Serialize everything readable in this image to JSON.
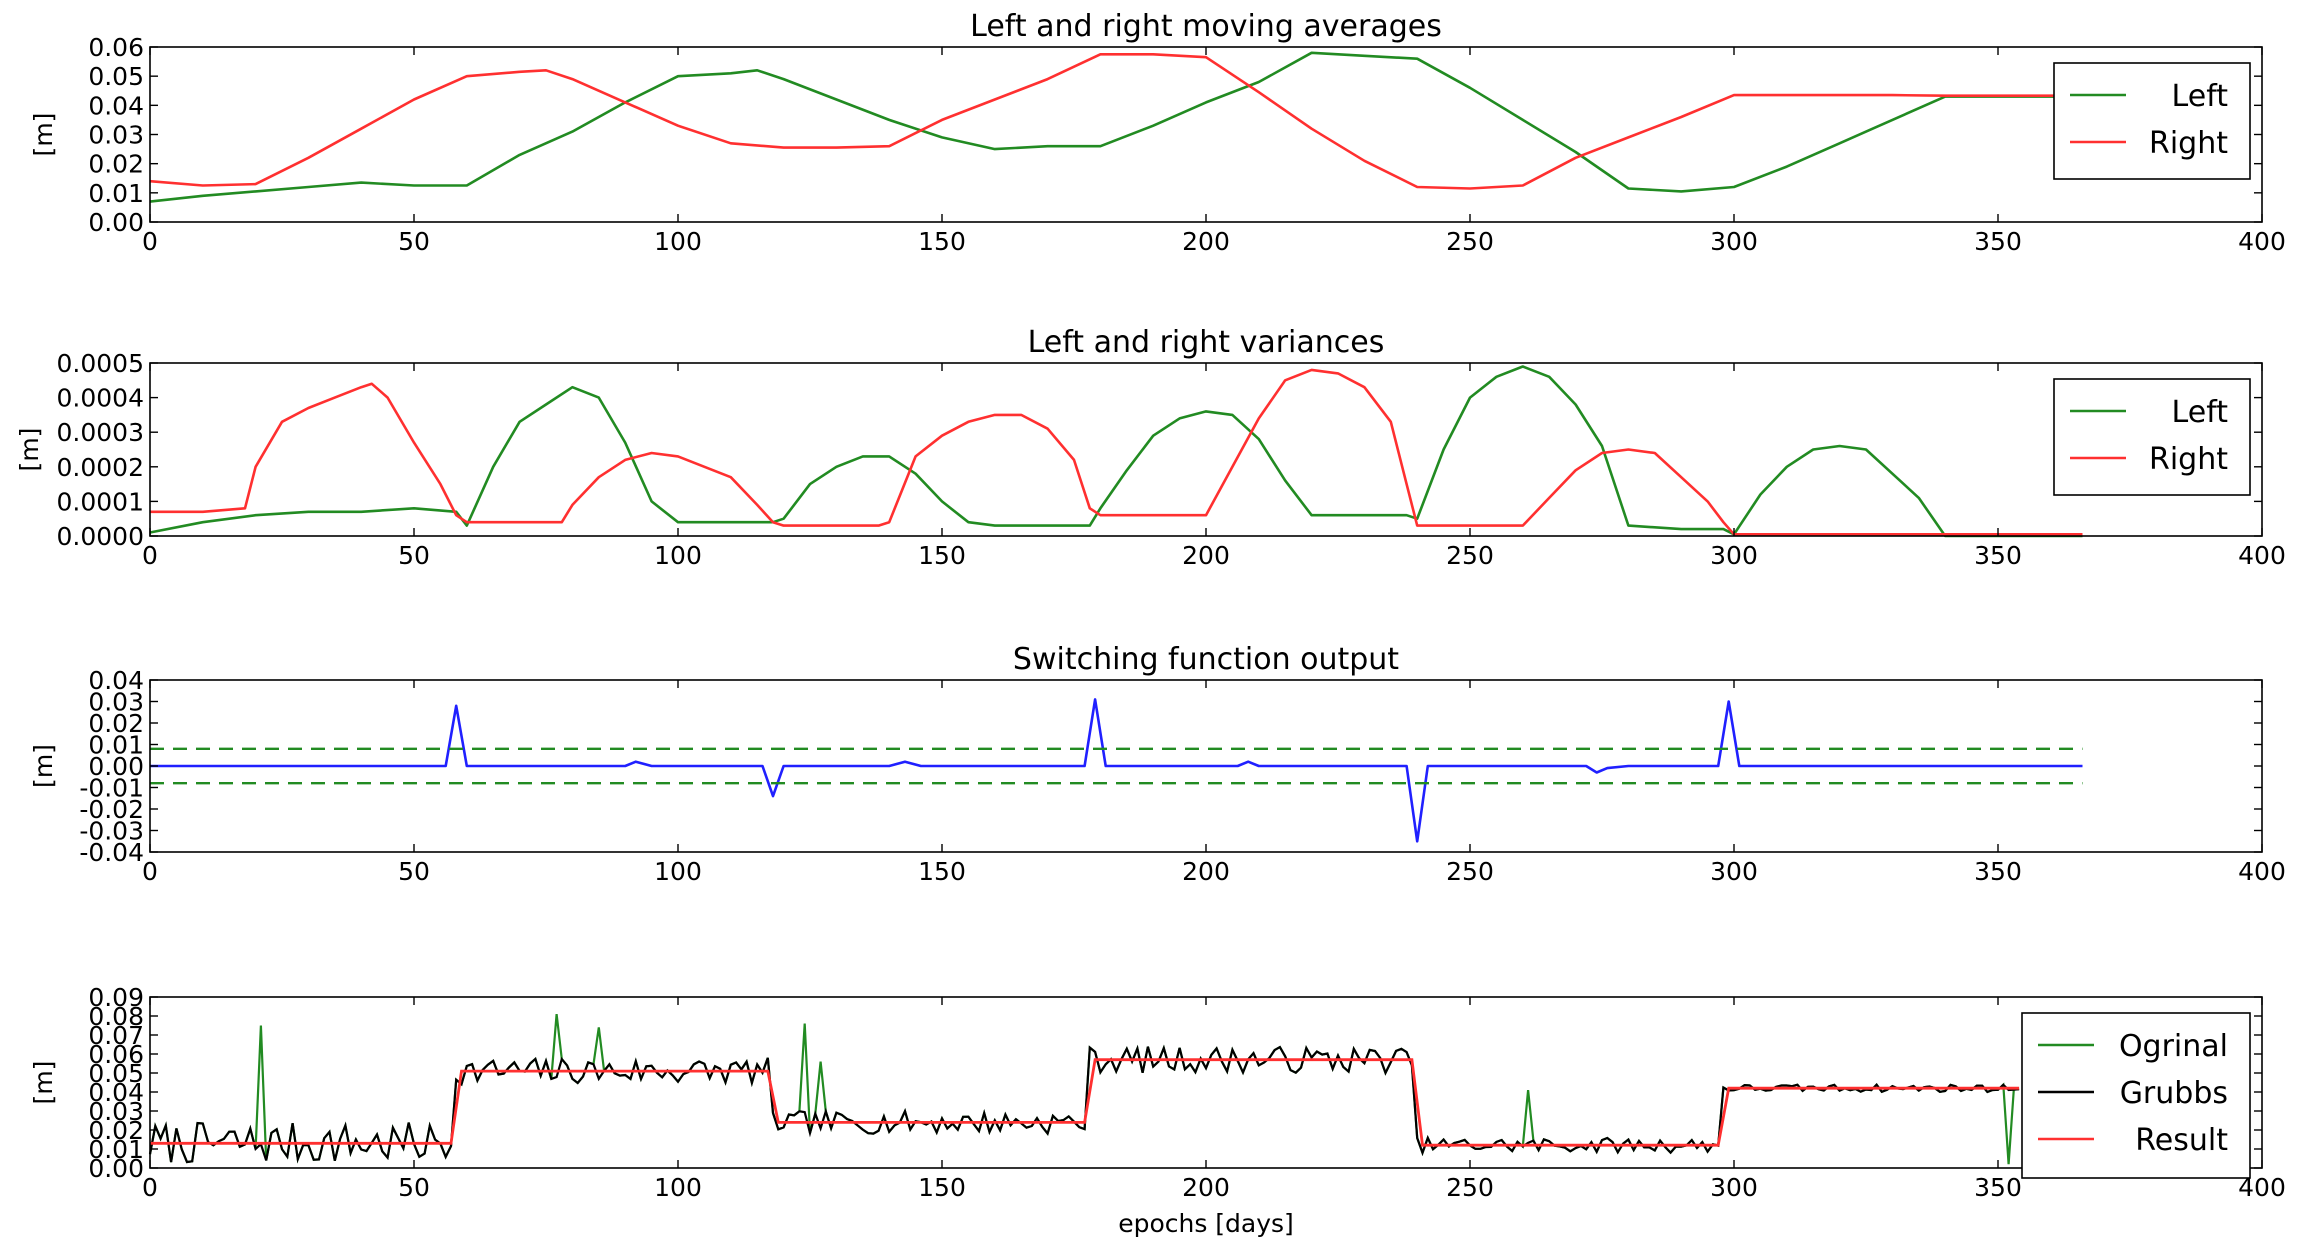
{
  "figure": {
    "xlabel": "epochs [days]"
  },
  "colors": {
    "green": "#228b22",
    "red": "#ff3030",
    "blue": "#2020ff",
    "black": "#000000"
  },
  "chart_data": [
    {
      "type": "line",
      "title": "Left and right moving averages",
      "xlabel": "",
      "ylabel": "[m]",
      "xlim": [
        0,
        400
      ],
      "ylim": [
        0,
        0.06
      ],
      "xticks": [
        "0",
        "50",
        "100",
        "150",
        "200",
        "250",
        "300",
        "350",
        "400"
      ],
      "yticks": [
        "0.00",
        "0.01",
        "0.02",
        "0.03",
        "0.04",
        "0.05",
        "0.06"
      ],
      "legend": {
        "position": "top-right",
        "entries": [
          "Left",
          "Right"
        ]
      },
      "series": [
        {
          "name": "Left",
          "color": "green",
          "x": [
            0,
            10,
            20,
            30,
            40,
            50,
            60,
            70,
            80,
            90,
            100,
            110,
            115,
            120,
            130,
            140,
            150,
            160,
            170,
            180,
            190,
            200,
            210,
            220,
            230,
            240,
            250,
            260,
            270,
            280,
            290,
            300,
            310,
            320,
            330,
            340,
            350,
            360,
            366
          ],
          "y": [
            0.007,
            0.009,
            0.0105,
            0.012,
            0.0135,
            0.0125,
            0.0125,
            0.023,
            0.031,
            0.041,
            0.05,
            0.051,
            0.052,
            0.049,
            0.042,
            0.035,
            0.029,
            0.025,
            0.026,
            0.026,
            0.033,
            0.041,
            0.048,
            0.058,
            0.057,
            0.056,
            0.046,
            0.035,
            0.024,
            0.0115,
            0.0105,
            0.012,
            0.019,
            0.027,
            0.035,
            0.043,
            0.043,
            0.043,
            0.043
          ]
        },
        {
          "name": "Right",
          "color": "red",
          "x": [
            0,
            10,
            20,
            30,
            40,
            50,
            60,
            70,
            75,
            80,
            90,
            100,
            110,
            120,
            130,
            140,
            150,
            160,
            170,
            180,
            190,
            200,
            210,
            220,
            230,
            240,
            250,
            260,
            270,
            280,
            290,
            300,
            310,
            320,
            330,
            340,
            350,
            360,
            366
          ],
          "y": [
            0.014,
            0.0125,
            0.013,
            0.022,
            0.032,
            0.042,
            0.05,
            0.0515,
            0.052,
            0.049,
            0.041,
            0.033,
            0.027,
            0.0255,
            0.0255,
            0.026,
            0.035,
            0.042,
            0.049,
            0.0575,
            0.0575,
            0.0565,
            0.0445,
            0.032,
            0.021,
            0.012,
            0.0115,
            0.0125,
            0.022,
            0.029,
            0.036,
            0.0435,
            0.0435,
            0.0435,
            0.0435,
            0.0433,
            0.0433,
            0.0433,
            0.0433
          ]
        }
      ]
    },
    {
      "type": "line",
      "title": "Left and right variances",
      "xlabel": "",
      "ylabel": "[m]",
      "xlim": [
        0,
        400
      ],
      "ylim": [
        0,
        0.0005
      ],
      "xticks": [
        "0",
        "50",
        "100",
        "150",
        "200",
        "250",
        "300",
        "350",
        "400"
      ],
      "yticks": [
        "0.0000",
        "0.0001",
        "0.0002",
        "0.0003",
        "0.0004",
        "0.0005"
      ],
      "legend": {
        "position": "top-right",
        "entries": [
          "Left",
          "Right"
        ]
      },
      "series": [
        {
          "name": "Left",
          "color": "green",
          "x": [
            0,
            10,
            20,
            30,
            40,
            50,
            58,
            60,
            65,
            70,
            75,
            80,
            85,
            90,
            95,
            100,
            110,
            118,
            120,
            125,
            130,
            135,
            140,
            145,
            150,
            155,
            160,
            170,
            178,
            180,
            185,
            190,
            195,
            200,
            205,
            210,
            215,
            220,
            230,
            238,
            240,
            245,
            250,
            255,
            260,
            265,
            270,
            275,
            280,
            290,
            298,
            300,
            305,
            310,
            315,
            320,
            325,
            330,
            335,
            340,
            350,
            360,
            366
          ],
          "y": [
            1e-05,
            4e-05,
            6e-05,
            7e-05,
            7e-05,
            8e-05,
            7e-05,
            3e-05,
            0.0002,
            0.00033,
            0.00038,
            0.00043,
            0.0004,
            0.00027,
            0.0001,
            4e-05,
            4e-05,
            4e-05,
            5e-05,
            0.00015,
            0.0002,
            0.00023,
            0.00023,
            0.00018,
            0.0001,
            4e-05,
            3e-05,
            3e-05,
            3e-05,
            8e-05,
            0.00019,
            0.00029,
            0.00034,
            0.00036,
            0.00035,
            0.00028,
            0.00016,
            6e-05,
            6e-05,
            6e-05,
            5e-05,
            0.00025,
            0.0004,
            0.00046,
            0.00049,
            0.00046,
            0.00038,
            0.00026,
            3e-05,
            2e-05,
            2e-05,
            5e-06,
            0.00012,
            0.0002,
            0.00025,
            0.00026,
            0.00025,
            0.00018,
            0.00011,
            0.0,
            0.0,
            0.0,
            0.0
          ]
        },
        {
          "name": "Right",
          "color": "red",
          "x": [
            0,
            10,
            18,
            20,
            25,
            30,
            35,
            40,
            42,
            45,
            50,
            55,
            58,
            60,
            70,
            78,
            80,
            85,
            90,
            95,
            100,
            105,
            110,
            115,
            118,
            120,
            130,
            138,
            140,
            145,
            150,
            155,
            160,
            165,
            170,
            175,
            178,
            180,
            190,
            198,
            200,
            205,
            210,
            215,
            220,
            225,
            230,
            235,
            238,
            240,
            250,
            258,
            260,
            265,
            270,
            275,
            280,
            285,
            290,
            295,
            298,
            300,
            310,
            320,
            330,
            340,
            350,
            360,
            366
          ],
          "y": [
            7e-05,
            7e-05,
            8e-05,
            0.0002,
            0.00033,
            0.00037,
            0.0004,
            0.00043,
            0.00044,
            0.0004,
            0.00027,
            0.00015,
            6e-05,
            4e-05,
            4e-05,
            4e-05,
            9e-05,
            0.00017,
            0.00022,
            0.00024,
            0.00023,
            0.0002,
            0.00017,
            9e-05,
            4e-05,
            3e-05,
            3e-05,
            3e-05,
            4e-05,
            0.00023,
            0.00029,
            0.00033,
            0.00035,
            0.00035,
            0.00031,
            0.00022,
            8e-05,
            6e-05,
            6e-05,
            6e-05,
            6e-05,
            0.0002,
            0.00034,
            0.00045,
            0.00048,
            0.00047,
            0.00043,
            0.00033,
            0.00015,
            3e-05,
            3e-05,
            3e-05,
            3e-05,
            0.00011,
            0.00019,
            0.00024,
            0.00025,
            0.00024,
            0.00017,
            0.0001,
            4e-05,
            5e-06,
            5e-06,
            5e-06,
            5e-06,
            5e-06,
            5e-06,
            5e-06,
            5e-06
          ]
        }
      ]
    },
    {
      "type": "line",
      "title": "Switching function output",
      "xlabel": "",
      "ylabel": "[m]",
      "xlim": [
        0,
        400
      ],
      "ylim": [
        -0.04,
        0.04
      ],
      "xticks": [
        "0",
        "50",
        "100",
        "150",
        "200",
        "250",
        "300",
        "350",
        "400"
      ],
      "yticks": [
        "-0.04",
        "-0.03",
        "-0.02",
        "-0.01",
        "0.00",
        "0.01",
        "0.02",
        "0.03",
        "0.04"
      ],
      "thresholds": [
        0.008,
        -0.008
      ],
      "threshold_color": "green",
      "series": [
        {
          "name": "Switching",
          "color": "blue",
          "x": [
            0,
            10,
            20,
            30,
            40,
            50,
            56,
            58,
            60,
            70,
            80,
            90,
            92,
            95,
            100,
            110,
            116,
            118,
            120,
            130,
            140,
            143,
            146,
            150,
            160,
            170,
            177,
            179,
            181,
            190,
            200,
            206,
            208,
            210,
            220,
            230,
            238,
            240,
            242,
            250,
            260,
            270,
            272,
            274,
            276,
            280,
            290,
            297,
            299,
            301,
            310,
            320,
            330,
            340,
            350,
            360,
            366
          ],
          "y": [
            0,
            0,
            0,
            0,
            0,
            0,
            0,
            0.028,
            0,
            0,
            0,
            0,
            0.002,
            0,
            0,
            0,
            0,
            -0.014,
            0,
            0,
            0,
            0.002,
            0,
            0,
            0,
            0,
            0,
            0.031,
            0,
            0,
            0,
            0,
            0.002,
            0,
            0,
            0,
            0,
            -0.035,
            0,
            0,
            0,
            0,
            0,
            -0.003,
            -0.001,
            0,
            0,
            0,
            0.03,
            0,
            0,
            0,
            0,
            0,
            0,
            0,
            0
          ]
        }
      ]
    },
    {
      "type": "line",
      "title": "",
      "xlabel": "epochs [days]",
      "ylabel": "[m]",
      "xlim": [
        0,
        400
      ],
      "ylim": [
        0,
        0.09
      ],
      "xticks": [
        "0",
        "50",
        "100",
        "150",
        "200",
        "250",
        "300",
        "350",
        "400"
      ],
      "yticks": [
        "0.00",
        "0.01",
        "0.02",
        "0.03",
        "0.04",
        "0.05",
        "0.06",
        "0.07",
        "0.08",
        "0.09"
      ],
      "legend": {
        "position": "top-right",
        "entries": [
          "Ogrinal",
          "Grubbs",
          "Result"
        ]
      },
      "segments": [
        {
          "start": 0,
          "end": 58,
          "level": 0.013
        },
        {
          "start": 58,
          "end": 118,
          "level": 0.051
        },
        {
          "start": 118,
          "end": 178,
          "level": 0.024
        },
        {
          "start": 178,
          "end": 240,
          "level": 0.057
        },
        {
          "start": 240,
          "end": 298,
          "level": 0.012
        },
        {
          "start": 298,
          "end": 355,
          "level": 0.042
        }
      ],
      "noise_amplitude": [
        0.011,
        0.007,
        0.006,
        0.007,
        0.004,
        0.002
      ],
      "outliers": [
        {
          "x": 21,
          "y": 0.075
        },
        {
          "x": 77,
          "y": 0.081
        },
        {
          "x": 85,
          "y": 0.074
        },
        {
          "x": 124,
          "y": 0.076
        },
        {
          "x": 127,
          "y": 0.056
        },
        {
          "x": 261,
          "y": 0.041
        },
        {
          "x": 352,
          "y": 0.002
        }
      ],
      "series": [
        {
          "name": "Ogrinal",
          "color": "green"
        },
        {
          "name": "Grubbs",
          "color": "black"
        },
        {
          "name": "Result",
          "color": "red"
        }
      ]
    }
  ]
}
